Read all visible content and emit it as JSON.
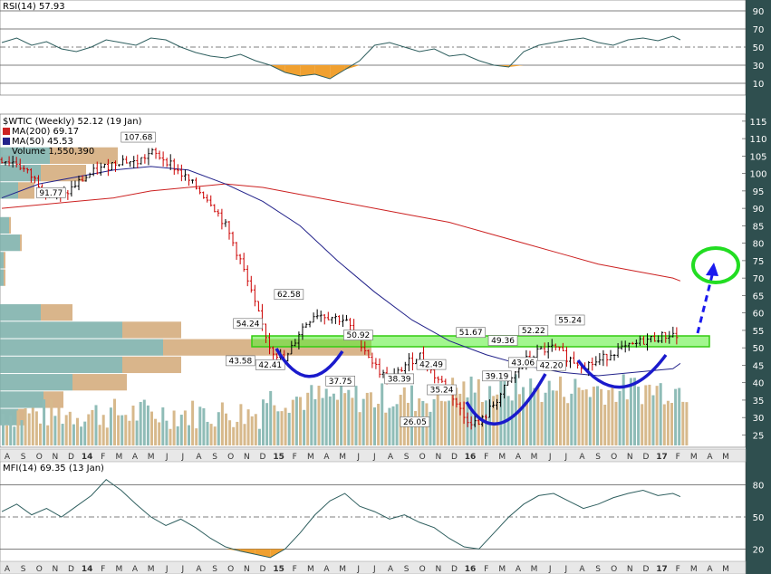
{
  "colors": {
    "background": "#ffffff",
    "axis_bar": "#2f4f4f",
    "rsi_line": "#2f5f5f",
    "rsi_fill_low": "#f0a030",
    "price_up": "#000000",
    "price_down": "#cc0000",
    "ma200": "#cc2222",
    "ma50": "#22228a",
    "volume_up": "#8fbcb7",
    "volume_down": "#d7b98c",
    "vbp_teal": "#79aea8",
    "vbp_tan": "#d2a877",
    "neckline_band": "#55ee33",
    "cup_arc": "#1a1acc",
    "target_circle": "#22dd22",
    "target_arrow": "#1a1aee"
  },
  "rsi_panel": {
    "title": "RSI(14) 57.93",
    "levels": [
      "90",
      "70",
      "50",
      "30",
      "10"
    ],
    "overbought": 70,
    "oversold": 30
  },
  "price_panel": {
    "title": "$WTIC (Weekly) 52.12 (19 Jan)",
    "legend": [
      {
        "label": "MA(200) 69.17",
        "color": "#cc2222"
      },
      {
        "label": "MA(50) 45.53",
        "color": "#22228a"
      },
      {
        "label": "Volume 1,550,390",
        "color": "#8fbcb7"
      }
    ],
    "y_ticks": [
      "115",
      "110",
      "105",
      "100",
      "95",
      "90",
      "85",
      "80",
      "75",
      "70",
      "65",
      "60",
      "55",
      "50",
      "45",
      "40",
      "35",
      "30",
      "25"
    ],
    "callouts": [
      {
        "label": "107.68",
        "x": 0.183,
        "y": 107.68
      },
      {
        "label": "91.77",
        "x": 0.066,
        "y": 91.77
      },
      {
        "label": "54.24",
        "x": 0.33,
        "y": 54.24
      },
      {
        "label": "62.58",
        "x": 0.385,
        "y": 62.58
      },
      {
        "label": "43.58",
        "x": 0.32,
        "y": 43.58
      },
      {
        "label": "42.41",
        "x": 0.36,
        "y": 42.41
      },
      {
        "label": "50.92",
        "x": 0.478,
        "y": 50.92
      },
      {
        "label": "37.75",
        "x": 0.454,
        "y": 37.75
      },
      {
        "label": "38.39",
        "x": 0.533,
        "y": 38.39
      },
      {
        "label": "42.49",
        "x": 0.576,
        "y": 42.49
      },
      {
        "label": "26.05",
        "x": 0.554,
        "y": 26.05
      },
      {
        "label": "35.24",
        "x": 0.59,
        "y": 35.24
      },
      {
        "label": "51.67",
        "x": 0.629,
        "y": 51.67
      },
      {
        "label": "49.36",
        "x": 0.672,
        "y": 49.36
      },
      {
        "label": "52.22",
        "x": 0.713,
        "y": 52.22
      },
      {
        "label": "55.24",
        "x": 0.762,
        "y": 55.24
      },
      {
        "label": "39.19",
        "x": 0.664,
        "y": 39.19
      },
      {
        "label": "43.06",
        "x": 0.699,
        "y": 43.06
      },
      {
        "label": "42.20",
        "x": 0.737,
        "y": 42.2
      }
    ]
  },
  "mfi_panel": {
    "title": "MFI(14) 69.35 (13 Jan)",
    "levels": [
      "80",
      "50",
      "20"
    ]
  },
  "x_axis": {
    "top_labels": [
      "A",
      "S",
      "O",
      "N",
      "D",
      "14",
      "F",
      "M",
      "A",
      "M",
      "J",
      "J",
      "A",
      "S",
      "O",
      "N",
      "D",
      "15",
      "F",
      "M",
      "A",
      "M",
      "J",
      "J",
      "A",
      "S",
      "O",
      "N",
      "D",
      "16",
      "F",
      "M",
      "A",
      "M",
      "J",
      "J",
      "A",
      "S",
      "O",
      "N",
      "D",
      "17",
      "F",
      "M",
      "A",
      "M"
    ],
    "bottom_labels": [
      "A",
      "S",
      "O",
      "N",
      "D",
      "14",
      "F",
      "M",
      "A",
      "M",
      "J",
      "J",
      "A",
      "S",
      "O",
      "N",
      "D",
      "15",
      "F",
      "M",
      "A",
      "M",
      "J",
      "J",
      "A",
      "S",
      "O",
      "N",
      "D",
      "16",
      "F",
      "M",
      "A",
      "M",
      "J",
      "J",
      "A",
      "S",
      "O",
      "N",
      "D",
      "17",
      "F",
      "M",
      "A",
      "M"
    ],
    "bold": [
      "14",
      "15",
      "16",
      "17"
    ]
  },
  "chart_data": [
    {
      "type": "line",
      "title": "RSI(14) 57.93",
      "ylim": [
        0,
        100
      ],
      "x": [
        0,
        0.02,
        0.04,
        0.06,
        0.08,
        0.1,
        0.12,
        0.14,
        0.16,
        0.18,
        0.2,
        0.22,
        0.24,
        0.26,
        0.28,
        0.3,
        0.32,
        0.34,
        0.36,
        0.38,
        0.4,
        0.42,
        0.44,
        0.46,
        0.48,
        0.5,
        0.52,
        0.54,
        0.56,
        0.58,
        0.6,
        0.62,
        0.64,
        0.66,
        0.68,
        0.7,
        0.72,
        0.74,
        0.76,
        0.78,
        0.8,
        0.82,
        0.84,
        0.86,
        0.88,
        0.9,
        0.91
      ],
      "values": [
        55,
        60,
        52,
        56,
        48,
        45,
        50,
        58,
        55,
        52,
        60,
        58,
        50,
        44,
        40,
        38,
        42,
        35,
        30,
        22,
        18,
        20,
        15,
        25,
        35,
        52,
        55,
        50,
        45,
        48,
        40,
        42,
        35,
        30,
        28,
        45,
        52,
        55,
        58,
        60,
        55,
        52,
        58,
        60,
        57,
        62,
        58
      ]
    },
    {
      "type": "line",
      "title": "$WTIC (Weekly) 52.12 (19 Jan)",
      "ylim": [
        22,
        116
      ],
      "series": [
        {
          "name": "$WTIC",
          "x": [
            0,
            0.02,
            0.04,
            0.06,
            0.08,
            0.1,
            0.12,
            0.14,
            0.16,
            0.18,
            0.2,
            0.22,
            0.24,
            0.26,
            0.28,
            0.3,
            0.32,
            0.34,
            0.36,
            0.38,
            0.4,
            0.42,
            0.44,
            0.46,
            0.48,
            0.5,
            0.52,
            0.54,
            0.56,
            0.58,
            0.6,
            0.62,
            0.64,
            0.66,
            0.68,
            0.7,
            0.72,
            0.74,
            0.76,
            0.78,
            0.8,
            0.82,
            0.84,
            0.86,
            0.88,
            0.9,
            0.91
          ],
          "values": [
            104,
            103,
            99,
            95,
            93,
            97,
            100,
            102,
            104,
            103,
            106,
            104,
            100,
            96,
            92,
            85,
            75,
            62,
            50,
            46,
            55,
            60,
            59,
            58,
            52,
            45,
            40,
            45,
            48,
            42,
            38,
            30,
            28,
            34,
            40,
            46,
            49,
            50,
            47,
            45,
            46,
            49,
            50,
            52,
            53,
            54,
            52
          ]
        },
        {
          "name": "MA(200) 69.17",
          "x": [
            0,
            0.05,
            0.1,
            0.15,
            0.2,
            0.25,
            0.3,
            0.35,
            0.4,
            0.45,
            0.5,
            0.55,
            0.6,
            0.65,
            0.7,
            0.75,
            0.8,
            0.85,
            0.9,
            0.91
          ],
          "values": [
            90,
            91,
            92,
            93,
            95,
            96,
            97,
            96,
            94,
            92,
            90,
            88,
            86,
            83,
            80,
            77,
            74,
            72,
            70,
            69.17
          ]
        },
        {
          "name": "MA(50) 45.53",
          "x": [
            0,
            0.05,
            0.1,
            0.15,
            0.2,
            0.25,
            0.3,
            0.35,
            0.4,
            0.45,
            0.5,
            0.55,
            0.6,
            0.65,
            0.7,
            0.75,
            0.8,
            0.85,
            0.9,
            0.91
          ],
          "values": [
            93,
            97,
            99,
            101,
            102,
            101,
            97,
            92,
            85,
            75,
            66,
            58,
            52,
            48,
            45,
            43,
            42,
            43,
            44,
            45.53
          ]
        }
      ]
    },
    {
      "type": "line",
      "title": "MFI(14) 69.35 (13 Jan)",
      "ylim": [
        0,
        100
      ],
      "x": [
        0,
        0.02,
        0.04,
        0.06,
        0.08,
        0.1,
        0.12,
        0.14,
        0.16,
        0.18,
        0.2,
        0.22,
        0.24,
        0.26,
        0.28,
        0.3,
        0.32,
        0.34,
        0.36,
        0.38,
        0.4,
        0.42,
        0.44,
        0.46,
        0.48,
        0.5,
        0.52,
        0.54,
        0.56,
        0.58,
        0.6,
        0.62,
        0.64,
        0.66,
        0.68,
        0.7,
        0.72,
        0.74,
        0.76,
        0.78,
        0.8,
        0.82,
        0.84,
        0.86,
        0.88,
        0.9,
        0.91
      ],
      "values": [
        55,
        62,
        52,
        58,
        50,
        60,
        70,
        85,
        75,
        62,
        50,
        42,
        48,
        40,
        30,
        22,
        18,
        15,
        12,
        20,
        35,
        52,
        65,
        72,
        60,
        55,
        48,
        52,
        45,
        40,
        30,
        22,
        20,
        35,
        50,
        62,
        70,
        72,
        65,
        58,
        62,
        68,
        72,
        75,
        70,
        72,
        69
      ]
    }
  ]
}
